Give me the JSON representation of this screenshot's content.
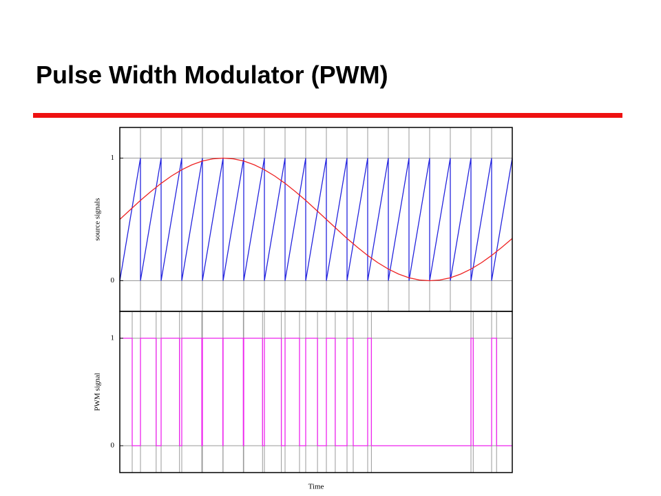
{
  "title": "Pulse Width Modulator (PWM)",
  "chart_data": [
    {
      "type": "line",
      "y_label": "source signals",
      "xlim": [
        0,
        19
      ],
      "ylim": [
        -0.25,
        1.25
      ],
      "yticks": [
        0,
        1
      ],
      "grid": true,
      "series": [
        {
          "color": "#2222dd",
          "x": [
            0,
            1,
            1,
            2,
            2,
            3,
            3,
            4,
            4,
            5,
            5,
            6,
            6,
            7,
            7,
            8,
            8,
            9,
            9,
            10,
            10,
            11,
            11,
            12,
            12,
            13,
            13,
            14,
            14,
            15,
            15,
            16,
            16,
            17,
            17,
            18,
            18,
            19
          ],
          "values": [
            0,
            1,
            0,
            1,
            0,
            1,
            0,
            1,
            0,
            1,
            0,
            1,
            0,
            1,
            0,
            1,
            0,
            1,
            0,
            1,
            0,
            1,
            0,
            1,
            0,
            1,
            0,
            1,
            0,
            1,
            0,
            1,
            0,
            1,
            0,
            1,
            0,
            1
          ]
        },
        {
          "color": "#ee2222",
          "x": [
            0,
            0.5,
            1,
            1.5,
            2,
            2.5,
            3,
            3.5,
            4,
            4.5,
            5,
            5.5,
            6,
            6.5,
            7,
            7.5,
            8,
            8.5,
            9,
            9.5,
            10,
            10.5,
            11,
            11.5,
            12,
            12.5,
            13,
            13.5,
            14,
            14.5,
            15,
            15.5,
            16,
            16.5,
            17,
            17.5,
            18,
            18.5,
            19
          ],
          "values": [
            0.5,
            0.578,
            0.655,
            0.727,
            0.794,
            0.854,
            0.905,
            0.946,
            0.976,
            0.994,
            1,
            0.994,
            0.976,
            0.946,
            0.905,
            0.854,
            0.794,
            0.727,
            0.655,
            0.578,
            0.5,
            0.422,
            0.345,
            0.273,
            0.206,
            0.146,
            0.095,
            0.054,
            0.024,
            0.006,
            0,
            0.006,
            0.024,
            0.054,
            0.095,
            0.146,
            0.206,
            0.273,
            0.345
          ]
        }
      ]
    },
    {
      "type": "line",
      "y_label": "PWM signal",
      "x_label": "Time",
      "xlim": [
        0,
        19
      ],
      "ylim": [
        -0.25,
        1.25
      ],
      "yticks": [
        0,
        1
      ],
      "grid": true,
      "series": [
        {
          "color": "#ee22ee",
          "x": [
            0,
            0.6,
            0.6,
            1,
            1,
            1.76,
            1.76,
            2,
            2,
            2.89,
            2.89,
            3,
            3,
            3.97,
            3.97,
            4,
            4,
            4.99,
            4.99,
            5,
            5,
            5.98,
            5.98,
            6,
            6,
            6.91,
            6.91,
            7,
            7,
            7.82,
            7.82,
            8,
            8,
            8.7,
            8.7,
            9,
            9,
            9.57,
            9.57,
            10,
            10,
            10.43,
            10.43,
            11,
            11,
            11.3,
            11.3,
            12,
            12,
            12.18,
            12.18,
            17,
            17,
            17.11,
            17.11,
            18,
            18,
            18.24,
            18.24,
            19
          ],
          "values": [
            1,
            1,
            0,
            0,
            1,
            1,
            0,
            0,
            1,
            1,
            0,
            0,
            1,
            1,
            0,
            0,
            1,
            1,
            0,
            0,
            1,
            1,
            0,
            0,
            1,
            1,
            0,
            0,
            1,
            1,
            0,
            0,
            1,
            1,
            0,
            0,
            1,
            1,
            0,
            0,
            1,
            1,
            0,
            0,
            1,
            1,
            0,
            0,
            1,
            1,
            0,
            0,
            1,
            1,
            0,
            0,
            1,
            1,
            0,
            0
          ]
        }
      ]
    }
  ]
}
